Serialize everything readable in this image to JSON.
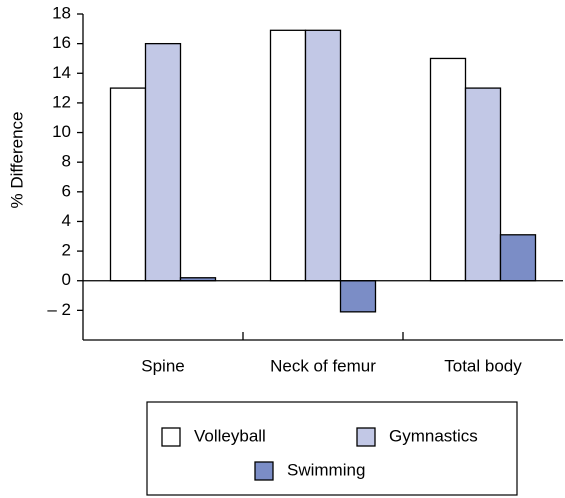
{
  "chart_data": {
    "type": "bar",
    "ylabel": "% Difference",
    "categories": [
      "Spine",
      "Neck of femur",
      "Total body"
    ],
    "series": [
      {
        "name": "Volleyball",
        "color": "#ffffff",
        "values": [
          13,
          16.9,
          15
        ]
      },
      {
        "name": "Gymnastics",
        "color": "#c2c8e6",
        "values": [
          16,
          16.9,
          13
        ]
      },
      {
        "name": "Swimming",
        "color": "#7b8dc6",
        "values": [
          0.2,
          -2.1,
          3.1
        ]
      }
    ],
    "ylim": [
      -4,
      18
    ],
    "yticks": [
      {
        "value": -2,
        "label": "– 2"
      },
      0,
      2,
      4,
      6,
      8,
      10,
      12,
      14,
      16,
      18
    ],
    "grid": false,
    "legend": "bottom"
  }
}
